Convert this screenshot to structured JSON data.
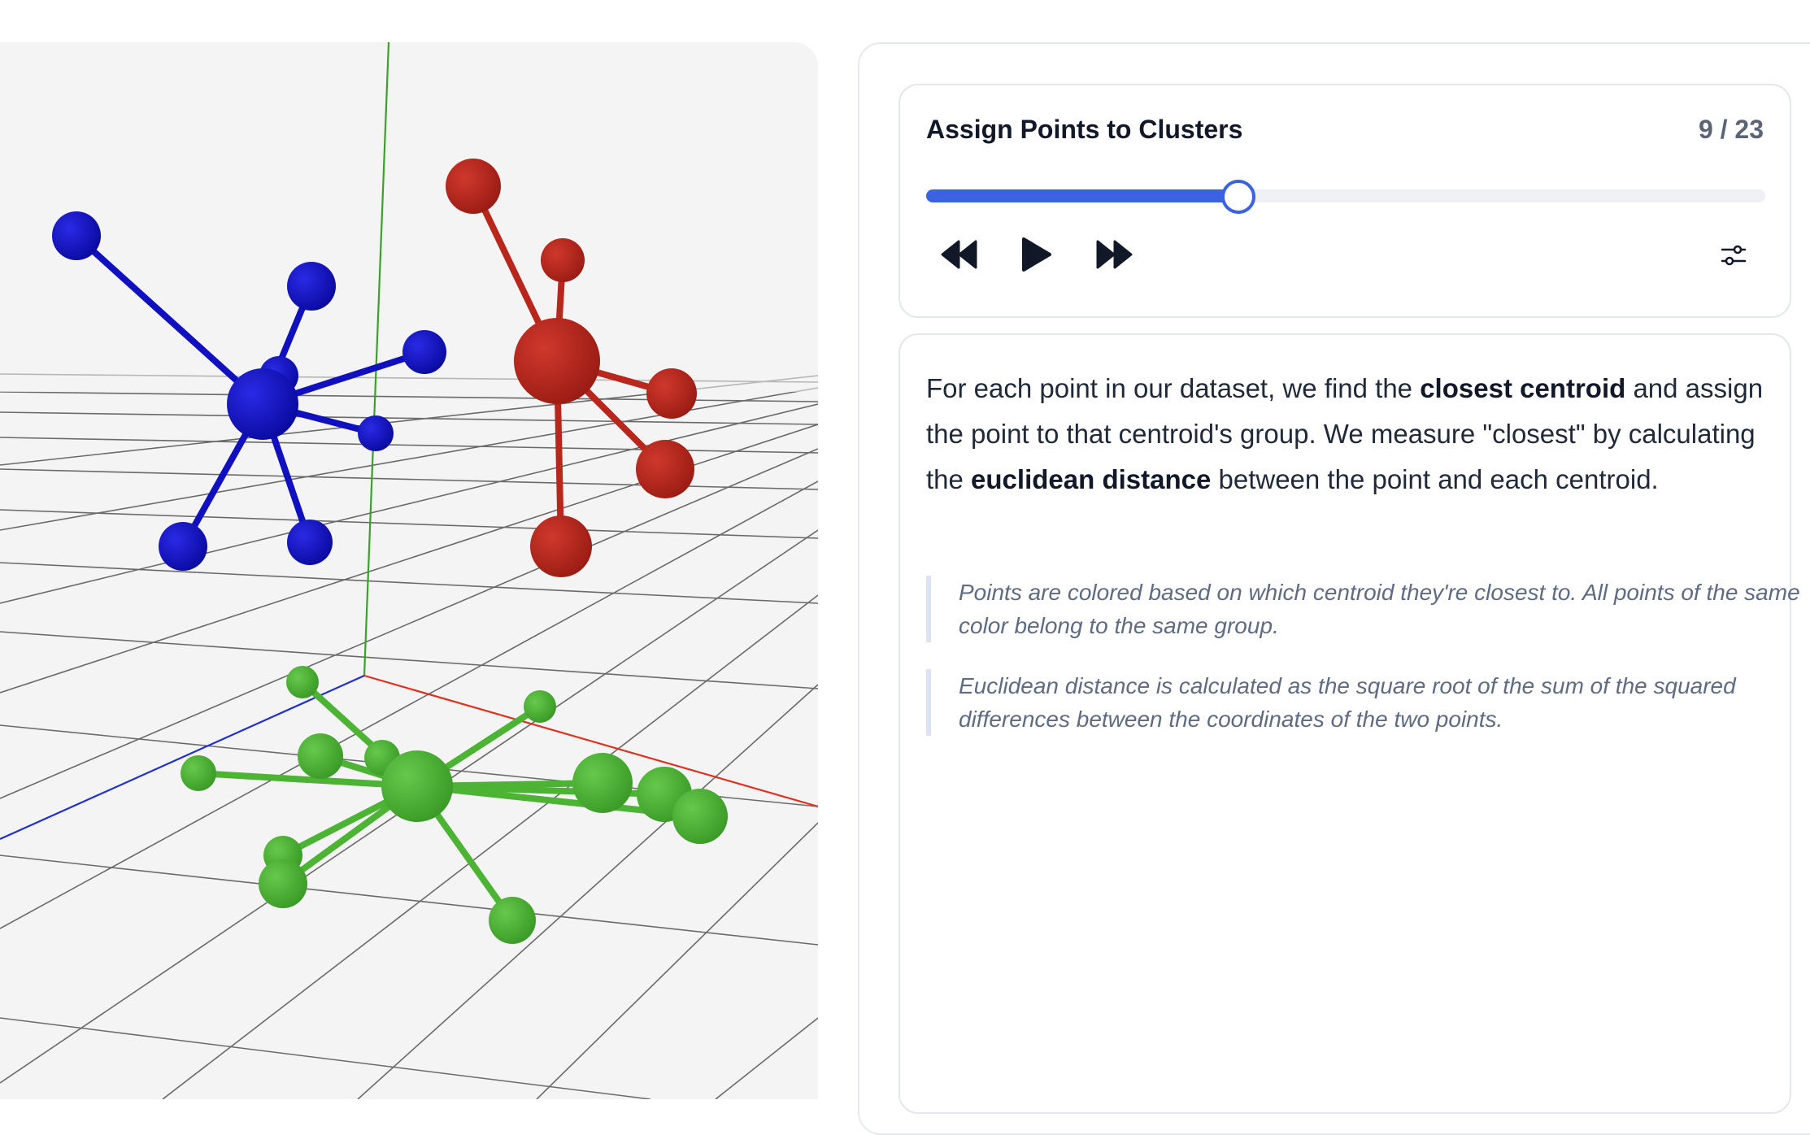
{
  "player": {
    "title": "Assign Points to Clusters",
    "counter": "9 / 23",
    "progress": 0.37,
    "controls": {
      "rewind_icon": "rewind-icon",
      "play_icon": "play-icon",
      "forward_icon": "fast-forward-icon",
      "settings_icon": "sliders-icon"
    }
  },
  "description": {
    "p1": "For each point in our dataset, we find the ",
    "b1": "closest centroid",
    "p2": " and assign the point to that centroid's group. We measure \"closest\" by calculating the ",
    "b2": "euclidean distance",
    "p3": " between the point and each centroid."
  },
  "notes": [
    "Points are colored based on which centroid they're closest to. All points of the same color belong to the same group.",
    "Euclidean distance is calculated as the square root of the sum of the squared differences between the coordinates of the two points."
  ],
  "scene": {
    "colors": {
      "cluster_blue": "#1010c0",
      "cluster_red": "#b8261c",
      "cluster_green": "#4cb334",
      "axis_x": "#e0301e",
      "axis_y": "#3aa12a",
      "axis_z": "#2030d0",
      "grid": "#666666"
    }
  }
}
